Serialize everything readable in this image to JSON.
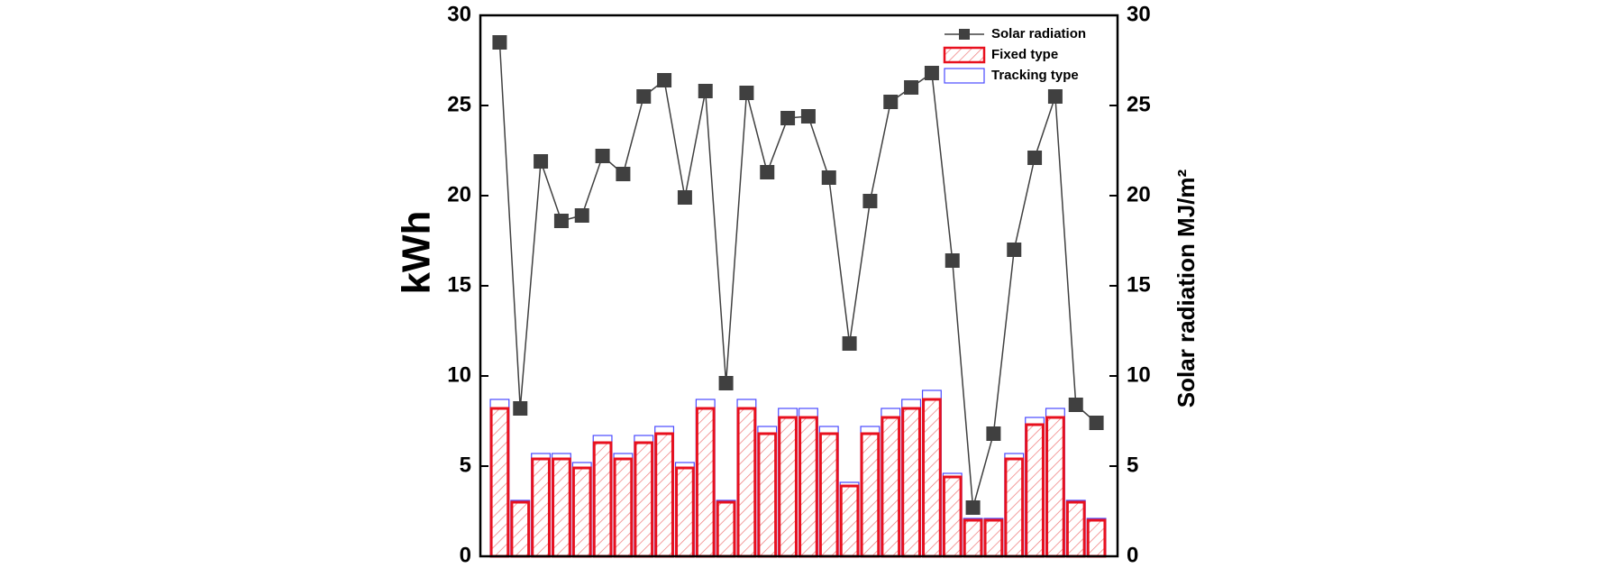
{
  "chart_data": {
    "type": "bar_line",
    "ylabel": "kWh",
    "y2label": "Solar radiation MJ/m²",
    "categories": [
      null,
      null,
      null,
      null,
      null,
      null,
      null,
      null,
      null,
      null,
      null,
      null,
      null,
      null,
      null,
      null,
      null,
      null,
      null,
      null,
      null,
      null,
      null,
      null,
      null,
      null,
      null,
      null,
      null,
      null
    ],
    "series": [
      {
        "name": "Solar radiation",
        "type": "line",
        "axis": "y2",
        "color": "#404040",
        "values": [
          28.5,
          8.2,
          21.9,
          18.6,
          18.9,
          22.2,
          21.2,
          25.5,
          26.4,
          19.9,
          25.8,
          9.6,
          25.7,
          21.3,
          24.3,
          24.4,
          21.0,
          11.8,
          19.7,
          25.2,
          26.0,
          26.8,
          16.4,
          2.7,
          6.8,
          17.0,
          22.1,
          25.5,
          8.4,
          7.4
        ]
      },
      {
        "name": "Fixed type",
        "type": "bar",
        "color": "#e8101e",
        "values": [
          8.2,
          3.0,
          5.4,
          5.4,
          4.9,
          6.3,
          5.4,
          6.3,
          6.8,
          4.9,
          8.2,
          3.0,
          8.2,
          6.8,
          7.7,
          7.7,
          6.8,
          3.9,
          6.8,
          7.7,
          8.2,
          8.7,
          4.4,
          2.0,
          2.0,
          5.4,
          7.3,
          7.7,
          3.0,
          2.0
        ]
      },
      {
        "name": "Tracking type",
        "type": "bar",
        "color": "#4a4aff",
        "values": [
          8.7,
          3.1,
          5.7,
          5.7,
          5.2,
          6.7,
          5.7,
          6.7,
          7.2,
          5.2,
          8.7,
          3.1,
          8.7,
          7.2,
          8.2,
          8.2,
          7.2,
          4.1,
          7.2,
          8.2,
          8.7,
          9.2,
          4.6,
          2.1,
          2.1,
          5.7,
          7.7,
          8.2,
          3.1,
          2.1
        ]
      }
    ],
    "ylim": [
      0,
      30
    ],
    "yticks": [
      0,
      5,
      10,
      15,
      20,
      25,
      30
    ],
    "y2lim": [
      0,
      30
    ],
    "y2ticks": [
      0,
      5,
      10,
      15,
      20,
      25,
      30
    ],
    "legend": "upper right"
  }
}
